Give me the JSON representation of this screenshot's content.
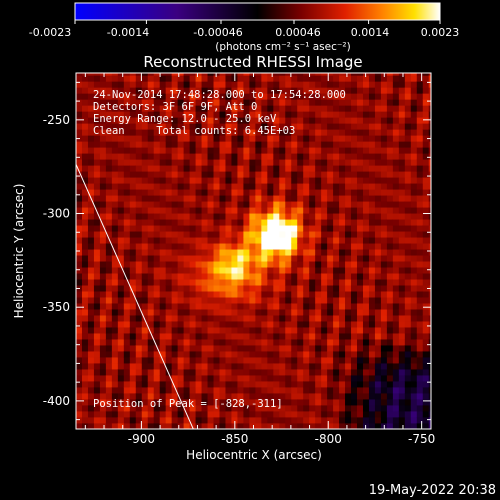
{
  "colorbar": {
    "tick_labels": [
      "-0.0023",
      "-0.0014",
      "-0.00046",
      "0.00046",
      "0.0014",
      "0.0023"
    ],
    "tick_values": [
      -0.0023,
      -0.0014,
      -0.00046,
      0.00046,
      0.0014,
      0.0023
    ],
    "range": [
      -0.0023,
      0.0023
    ],
    "units_label": "(photons cm⁻² s⁻¹ asec⁻²)",
    "colors": [
      "#0000ff",
      "#3a0080",
      "#000000",
      "#7a0000",
      "#e02000",
      "#ff8000",
      "#ffe000",
      "#ffffff"
    ]
  },
  "chart_data": {
    "type": "heatmap",
    "title": "Reconstructed RHESSI Image",
    "xlabel": "Heliocentric X (arcsec)",
    "ylabel": "Heliocentric Y (arcsec)",
    "xlim": [
      -935,
      -745
    ],
    "ylim": [
      -415,
      -225
    ],
    "x_ticks": [
      -900,
      -850,
      -800,
      -750
    ],
    "x_tick_labels": [
      "-900",
      "-850",
      "-800",
      "-750"
    ],
    "y_ticks": [
      -400,
      -350,
      -300,
      -250
    ],
    "y_tick_labels": [
      "-400",
      "-350",
      "-300",
      "-250"
    ],
    "peak": {
      "x": -828,
      "y": -311,
      "value": 0.0023
    },
    "secondary_source": {
      "x": -850,
      "y": -325,
      "value": 0.0013
    },
    "limb_line": [
      [
        -938,
        -267
      ],
      [
        -870,
        -420
      ]
    ],
    "info": {
      "line1": "24-Nov-2014 17:48:28.000 to 17:54:28.000",
      "line2": "Detectors: 3F 6F 9F, Att 0",
      "line3": "Energy Range: 12.0 - 25.0 keV",
      "line4": "Clean     Total counts: 6.45E+03"
    },
    "peak_label": "Position of Peak = [-828,-311]"
  },
  "footer": {
    "timestamp": "19-May-2022 20:38"
  }
}
